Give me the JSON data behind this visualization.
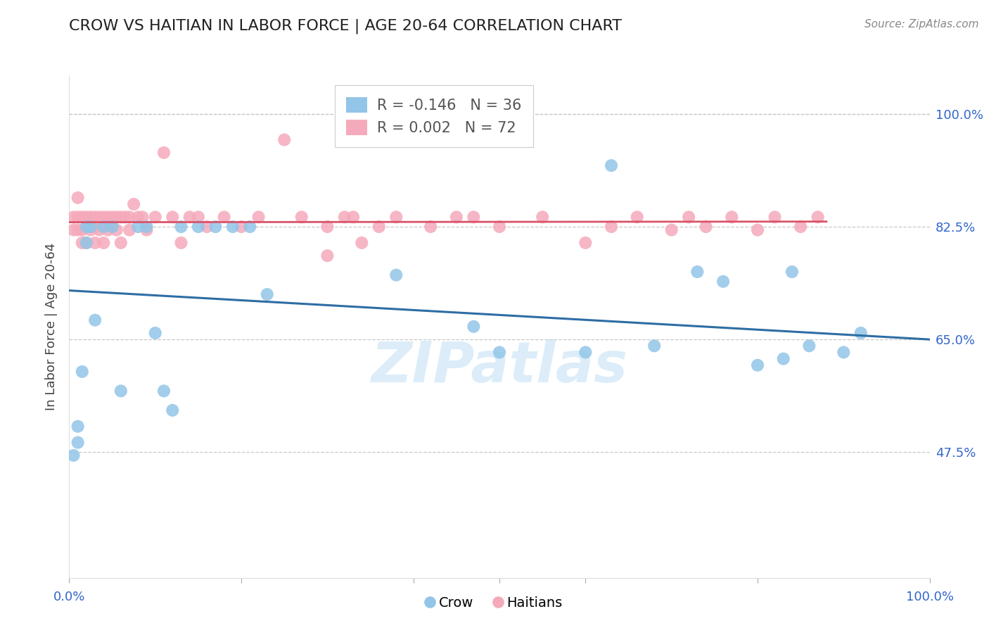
{
  "title": "CROW VS HAITIAN IN LABOR FORCE | AGE 20-64 CORRELATION CHART",
  "source": "Source: ZipAtlas.com",
  "ylabel": "In Labor Force | Age 20-64",
  "xlim": [
    0.0,
    1.0
  ],
  "ylim": [
    0.28,
    1.06
  ],
  "yticks": [
    0.475,
    0.65,
    0.825,
    1.0
  ],
  "ytick_labels": [
    "47.5%",
    "65.0%",
    "82.5%",
    "100.0%"
  ],
  "crow_R": -0.146,
  "crow_N": 36,
  "haitian_R": 0.002,
  "haitian_N": 72,
  "crow_color": "#92C5E8",
  "haitian_color": "#F5AABB",
  "crow_line_color": "#2E6DA4",
  "haitian_line_color": "#D9546A",
  "watermark": "ZIPatlas",
  "crow_x": [
    0.005,
    0.01,
    0.01,
    0.015,
    0.02,
    0.02,
    0.025,
    0.03,
    0.04,
    0.05,
    0.06,
    0.08,
    0.09,
    0.1,
    0.11,
    0.12,
    0.13,
    0.15,
    0.17,
    0.19,
    0.21,
    0.23,
    0.38,
    0.47,
    0.5,
    0.6,
    0.63,
    0.68,
    0.73,
    0.76,
    0.8,
    0.83,
    0.84,
    0.86,
    0.9,
    0.92
  ],
  "crow_y": [
    0.47,
    0.515,
    0.49,
    0.6,
    0.825,
    0.8,
    0.825,
    0.68,
    0.825,
    0.825,
    0.57,
    0.825,
    0.825,
    0.66,
    0.57,
    0.54,
    0.825,
    0.825,
    0.825,
    0.825,
    0.825,
    0.72,
    0.75,
    0.67,
    0.63,
    0.63,
    0.92,
    0.64,
    0.755,
    0.74,
    0.61,
    0.62,
    0.755,
    0.64,
    0.63,
    0.66
  ],
  "haitian_x": [
    0.005,
    0.005,
    0.01,
    0.01,
    0.01,
    0.015,
    0.015,
    0.015,
    0.02,
    0.02,
    0.02,
    0.025,
    0.025,
    0.025,
    0.03,
    0.03,
    0.03,
    0.035,
    0.035,
    0.04,
    0.04,
    0.04,
    0.045,
    0.045,
    0.05,
    0.05,
    0.055,
    0.055,
    0.06,
    0.06,
    0.065,
    0.07,
    0.07,
    0.075,
    0.08,
    0.085,
    0.09,
    0.1,
    0.11,
    0.12,
    0.13,
    0.14,
    0.15,
    0.16,
    0.18,
    0.2,
    0.22,
    0.25,
    0.27,
    0.3,
    0.33,
    0.36,
    0.38,
    0.42,
    0.45,
    0.47,
    0.3,
    0.32,
    0.34,
    0.5,
    0.55,
    0.6,
    0.63,
    0.66,
    0.7,
    0.72,
    0.74,
    0.77,
    0.8,
    0.82,
    0.85,
    0.87
  ],
  "haitian_y": [
    0.84,
    0.82,
    0.87,
    0.84,
    0.82,
    0.84,
    0.82,
    0.8,
    0.84,
    0.825,
    0.8,
    0.84,
    0.825,
    0.82,
    0.84,
    0.825,
    0.8,
    0.84,
    0.82,
    0.84,
    0.825,
    0.8,
    0.84,
    0.82,
    0.84,
    0.825,
    0.84,
    0.82,
    0.84,
    0.8,
    0.84,
    0.84,
    0.82,
    0.86,
    0.84,
    0.84,
    0.82,
    0.84,
    0.94,
    0.84,
    0.8,
    0.84,
    0.84,
    0.825,
    0.84,
    0.825,
    0.84,
    0.96,
    0.84,
    0.78,
    0.84,
    0.825,
    0.84,
    0.825,
    0.84,
    0.84,
    0.825,
    0.84,
    0.8,
    0.825,
    0.84,
    0.8,
    0.825,
    0.84,
    0.82,
    0.84,
    0.825,
    0.84,
    0.82,
    0.84,
    0.825,
    0.84
  ],
  "crow_trend_x": [
    0.0,
    1.0
  ],
  "crow_trend_y": [
    0.726,
    0.65
  ],
  "haitian_trend_x": [
    0.0,
    0.88
  ],
  "haitian_trend_y": [
    0.832,
    0.833
  ]
}
